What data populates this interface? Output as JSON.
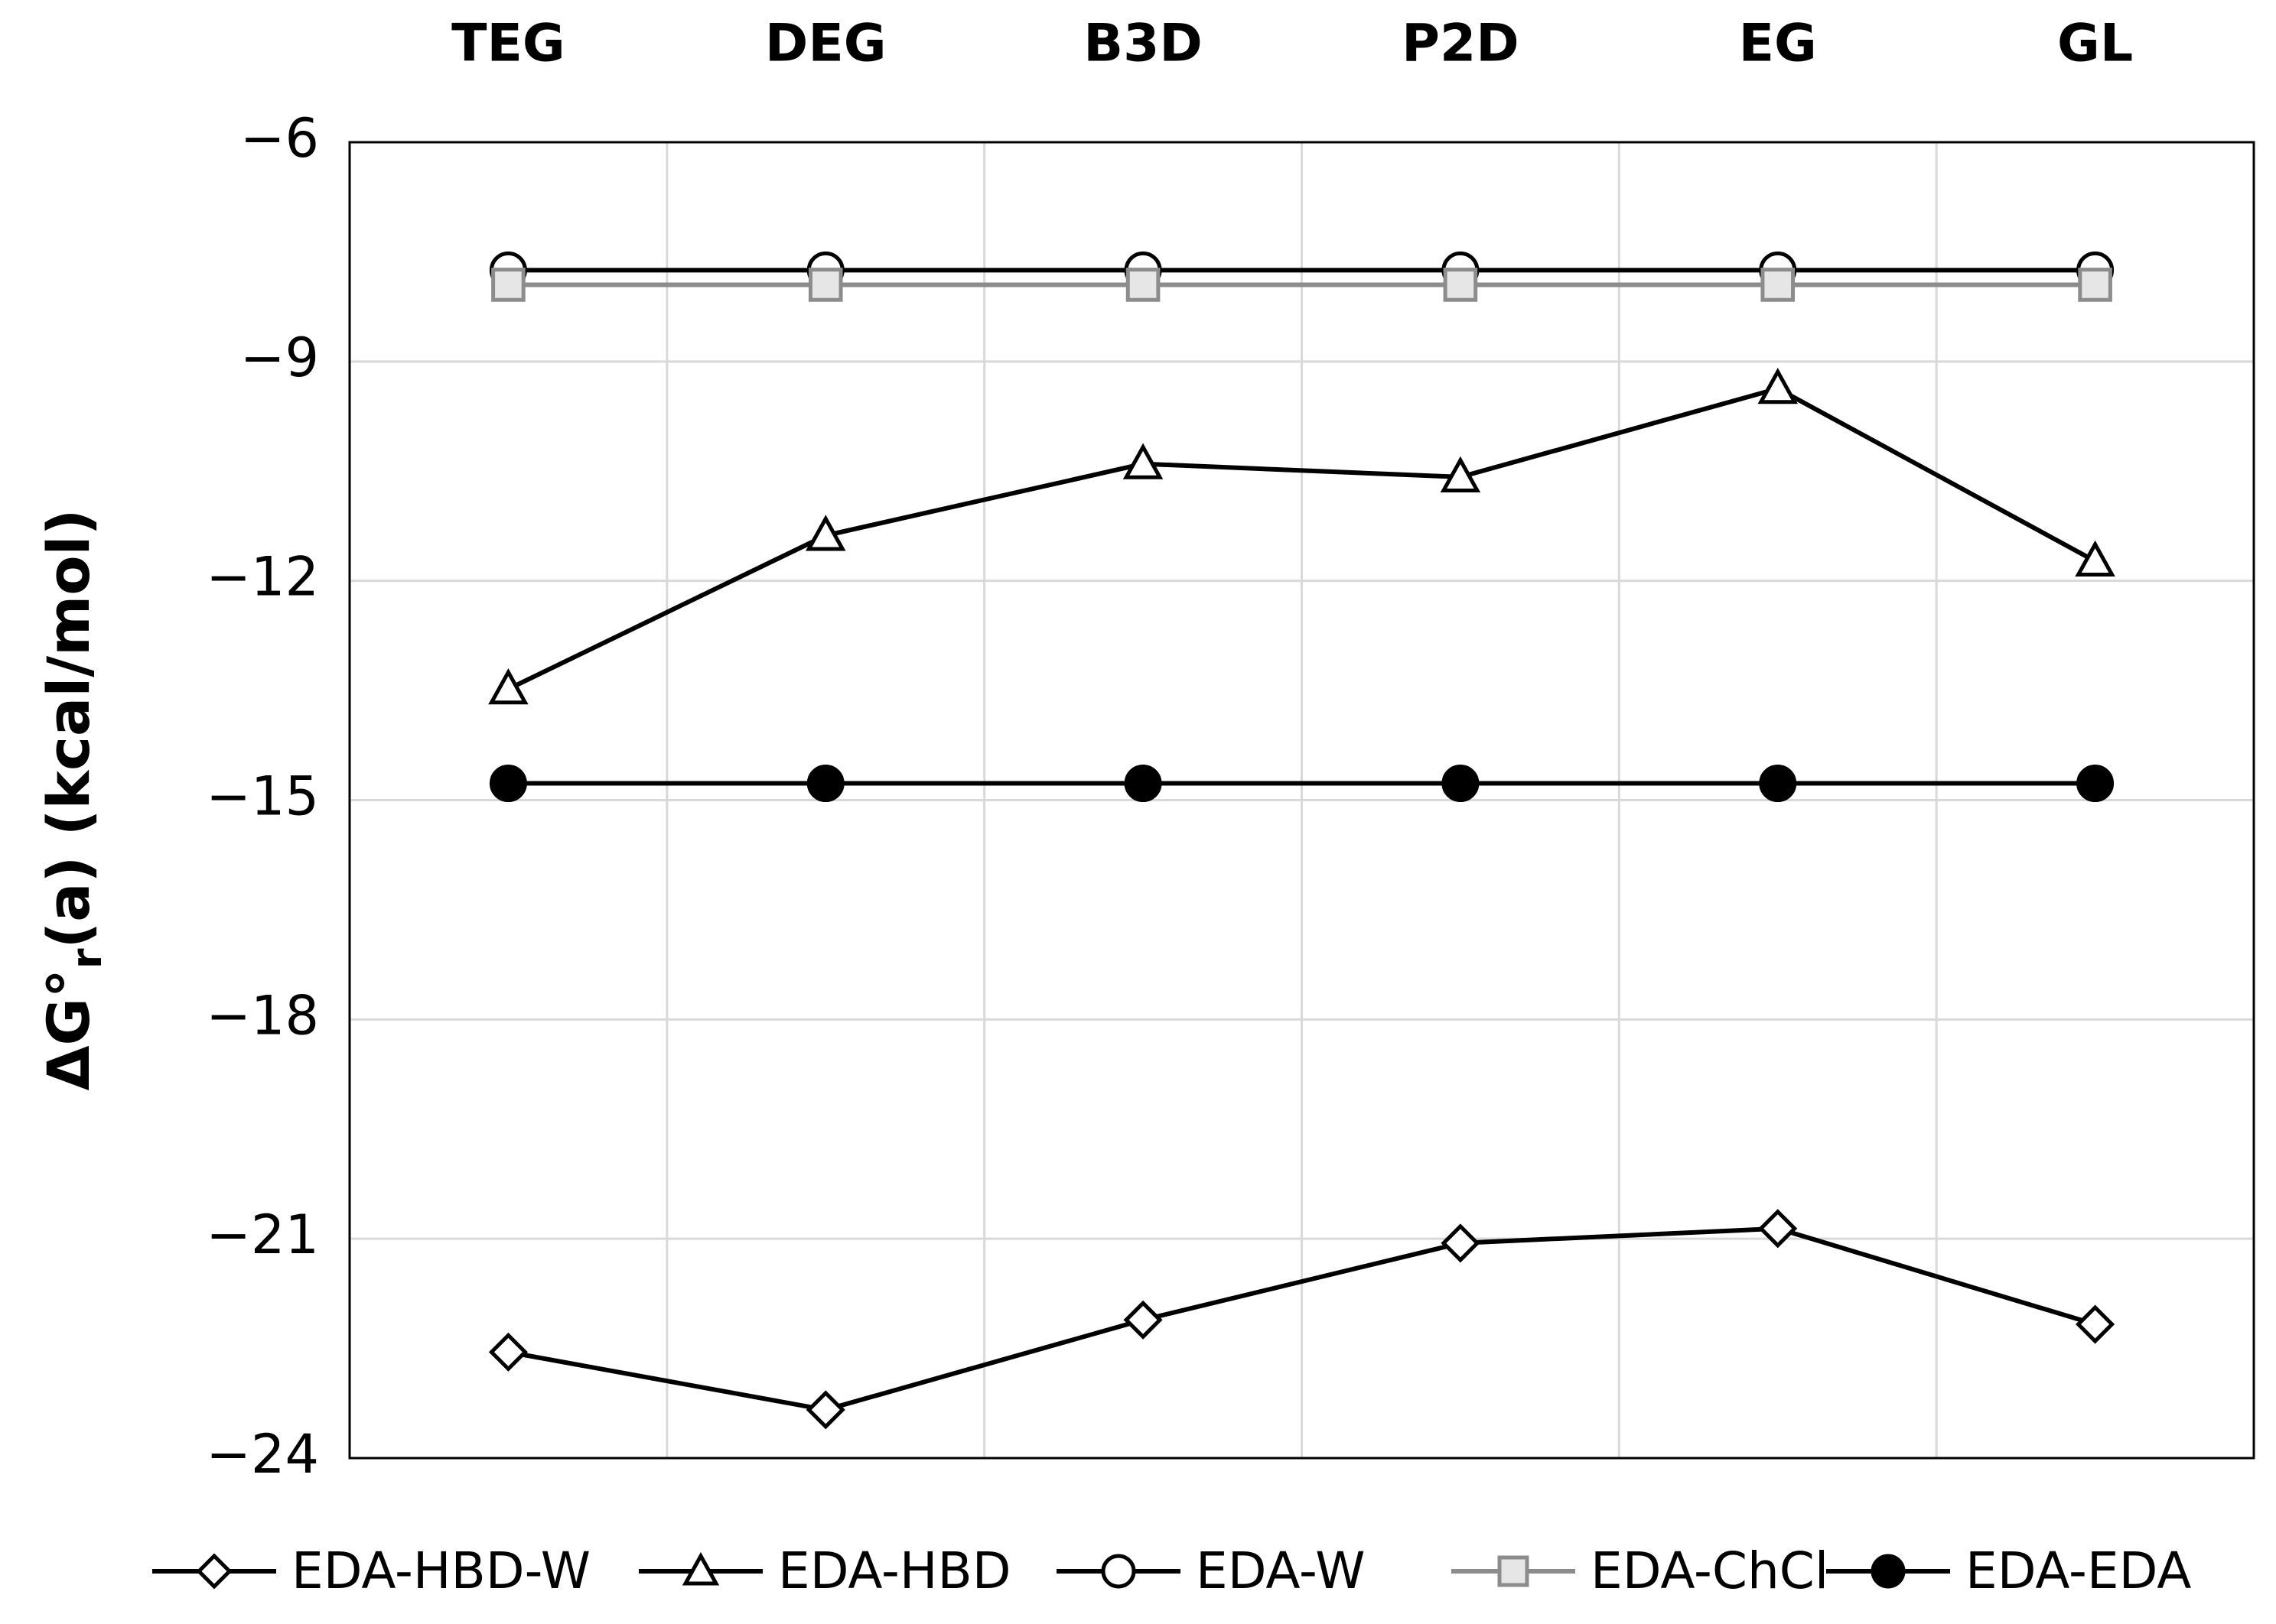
{
  "chart_data": {
    "type": "line",
    "ylabel": {
      "main": "ΔG°",
      "sub": "r",
      "rest": "(a) (kcal/mol)"
    },
    "categories": [
      "TEG",
      "DEG",
      "B3D",
      "P2D",
      "EG",
      "GL"
    ],
    "ylim": [
      -24,
      -6
    ],
    "yticks": [
      {
        "value": -6,
        "label": "−6"
      },
      {
        "value": -9,
        "label": "−9"
      },
      {
        "value": -12,
        "label": "−12"
      },
      {
        "value": -15,
        "label": "−15"
      },
      {
        "value": -18,
        "label": "−18"
      },
      {
        "value": -21,
        "label": "−21"
      },
      {
        "value": -24,
        "label": "−24"
      }
    ],
    "grid": true,
    "legend": "bottom",
    "series": [
      {
        "name": "EDA-HBD-W",
        "color": "#000000",
        "marker": "diamond",
        "marker_fill": "#ffffff",
        "values": [
          -22.55,
          -23.34,
          -22.11,
          -21.06,
          -20.86,
          -22.17
        ]
      },
      {
        "name": "EDA-HBD",
        "color": "#000000",
        "marker": "triangle",
        "marker_fill": "#ffffff",
        "values": [
          -13.48,
          -11.38,
          -10.4,
          -10.58,
          -9.37,
          -11.73
        ]
      },
      {
        "name": "EDA-W",
        "color": "#000000",
        "marker": "circle",
        "marker_fill": "#ffffff",
        "values": [
          -7.75,
          -7.75,
          -7.75,
          -7.75,
          -7.75,
          -7.75
        ]
      },
      {
        "name": "EDA-ChCl",
        "color": "#8c8c8c",
        "marker": "square",
        "marker_fill": "#e6e6e6",
        "values": [
          -7.95,
          -7.95,
          -7.95,
          -7.95,
          -7.95,
          -7.95
        ]
      },
      {
        "name": "EDA-EDA",
        "color": "#000000",
        "marker": "circle",
        "marker_fill": "#000000",
        "values": [
          -14.77,
          -14.77,
          -14.77,
          -14.77,
          -14.77,
          -14.77
        ]
      }
    ]
  }
}
